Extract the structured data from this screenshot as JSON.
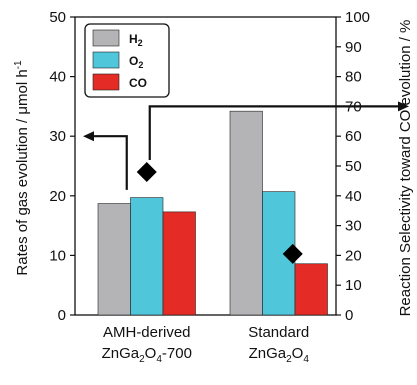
{
  "chart_data": {
    "type": "bar",
    "categories": [
      {
        "main": "AMH-derived",
        "formula": {
          "base": "ZnGa",
          "s1": "2",
          "mid": "O",
          "s2": "4",
          "suffix": "-700"
        }
      },
      {
        "main": "Standard",
        "formula": {
          "base": "ZnGa",
          "s1": "2",
          "mid": "O",
          "s2": "4",
          "suffix": ""
        }
      }
    ],
    "series": [
      {
        "name": "H",
        "sub": "2",
        "color": "#b4b4b6",
        "values": [
          18.7,
          34.2
        ]
      },
      {
        "name": "O",
        "sub": "2",
        "color": "#4fc6da",
        "values": [
          19.7,
          20.7
        ]
      },
      {
        "name": "CO",
        "sub": "",
        "color": "#e52b25",
        "values": [
          17.3,
          8.6
        ]
      }
    ],
    "selectivity": {
      "values": [
        48,
        20.5
      ],
      "marker": "diamond"
    },
    "ylabel": {
      "text": "Rates of gas evolution / μmol h",
      "sup": "-1"
    },
    "y2label": "Reaction Selectivity toward CO evolution / %",
    "ylim": [
      0,
      50
    ],
    "y2lim": [
      0,
      100
    ],
    "yticks": [
      "0",
      "10",
      "20",
      "30",
      "40",
      "50"
    ],
    "y2ticks": [
      "0",
      "10",
      "20",
      "30",
      "40",
      "50",
      "60",
      "70",
      "80",
      "90",
      "100"
    ],
    "legend": "top-left",
    "grid": false
  }
}
